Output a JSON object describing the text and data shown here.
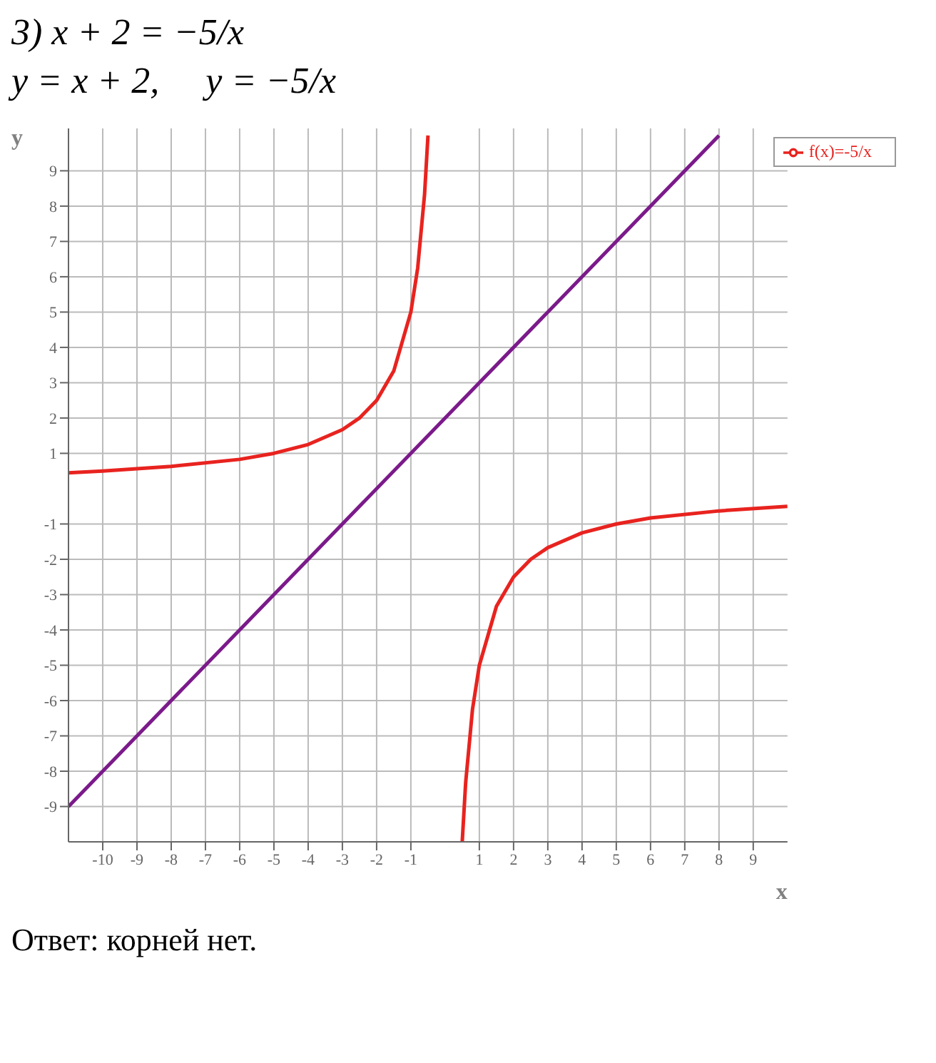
{
  "chart_data": {
    "type": "line",
    "title": "3) x + 2 = −5/x",
    "subtitle": "y = x + 2,     y = −5/x",
    "xlabel": "x",
    "ylabel": "y",
    "series": [
      {
        "name": "f(x)=-5/x",
        "color": "#e8231f",
        "x": [
          -11,
          -10,
          -8,
          -6,
          -5,
          -4,
          -3,
          -2.5,
          -2,
          -1.5,
          -1,
          -0.8,
          -0.6,
          -0.5,
          0,
          0.5,
          0.6,
          0.8,
          1,
          1.5,
          2,
          2.5,
          3,
          4,
          5,
          6,
          8,
          10
        ],
        "values": [
          0.45,
          0.5,
          0.63,
          0.83,
          1,
          1.25,
          1.67,
          2,
          2.5,
          3.33,
          5,
          6.25,
          8.33,
          10,
          null,
          -10,
          -8.33,
          -6.25,
          -5,
          -3.33,
          -2.5,
          -2,
          -1.67,
          -1.25,
          -1,
          -0.83,
          -0.63,
          -0.5
        ]
      },
      {
        "color": "#7b1a8a",
        "x": [
          -11,
          8
        ],
        "values": [
          -9,
          10
        ]
      }
    ],
    "xlim": [
      -11,
      10
    ],
    "ylim": [
      -10,
      10.2
    ],
    "xticks": [
      -10,
      -9,
      -8,
      -7,
      -6,
      -5,
      -4,
      -3,
      -2,
      -1,
      1,
      2,
      3,
      4,
      5,
      6,
      7,
      8,
      9
    ],
    "yticks": [
      -9,
      -8,
      -7,
      -6,
      -5,
      -4,
      -3,
      -2,
      -1,
      1,
      2,
      3,
      4,
      5,
      6,
      7,
      8,
      9
    ],
    "grid": true,
    "legend": "top right",
    "marker": "none",
    "line_style": "solid",
    "annotations": [
      "Ответ: корней нет."
    ]
  }
}
